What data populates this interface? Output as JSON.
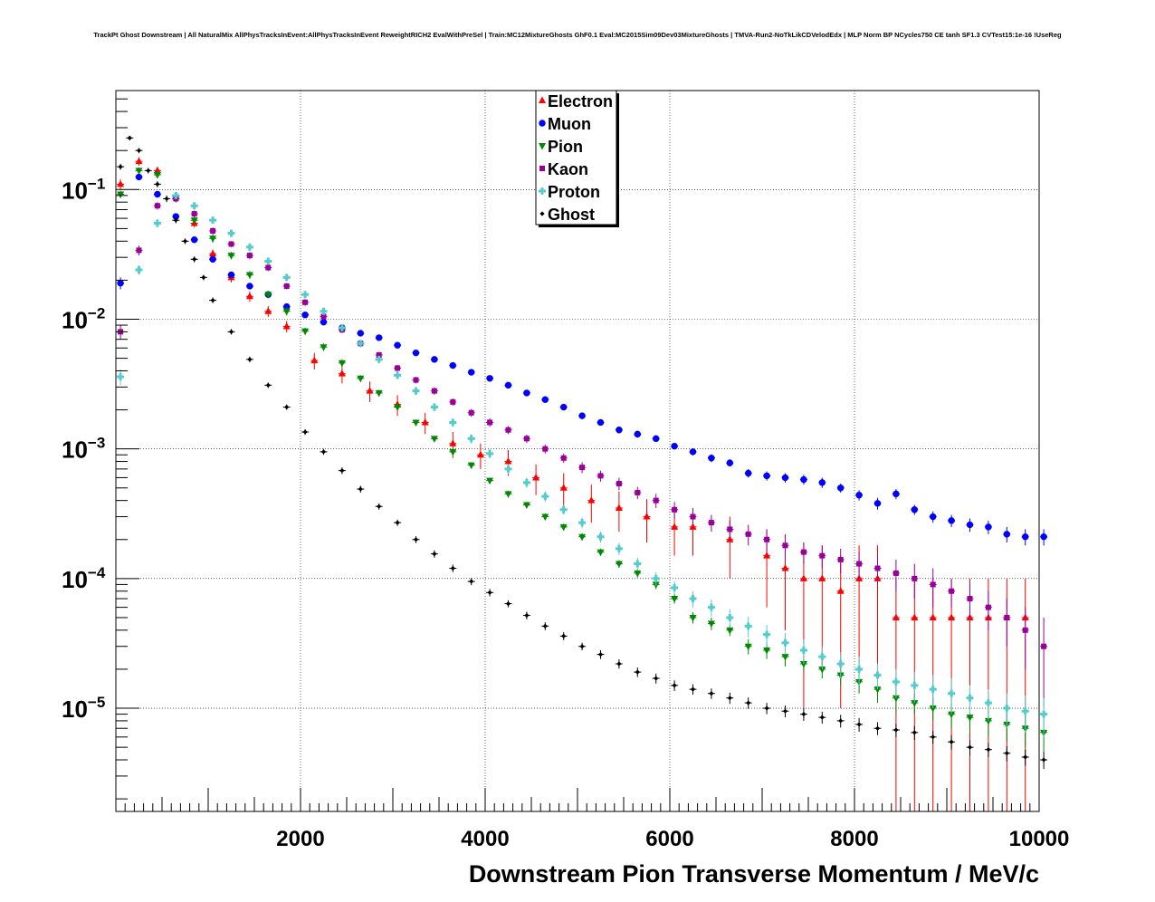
{
  "chart_data": {
    "type": "scatter",
    "title": "TrackPt Ghost Downstream | All NaturalMix AllPhysTracksInEvent:AllPhysTracksInEvent ReweightRICH2 EvalWithPreSel | Train:MC12MixtureGhosts GhF0.1 Eval:MC2015Sim09Dev03MixtureGhosts | TMVA-Run2-NoTkLikCDVelodEdx | MLP Norm BP NCycles750 CE tanh SF1.3 CVTest15:1e-16 !UseReg",
    "xlabel": "Downstream Pion Transverse Momentum / MeV/c",
    "ylabel": "",
    "xlim": [
      0,
      10000
    ],
    "ylim": [
      1.6e-06,
      0.58
    ],
    "yscale": "log",
    "grid": true,
    "legend_position": "top-center",
    "x_ticks": [
      "2000",
      "4000",
      "6000",
      "8000",
      "10000"
    ],
    "y_ticks": [
      {
        "mant": "10",
        "exp": "−1",
        "value": 0.1
      },
      {
        "mant": "10",
        "exp": "−2",
        "value": 0.01
      },
      {
        "mant": "10",
        "exp": "−3",
        "value": 0.001
      },
      {
        "mant": "10",
        "exp": "−4",
        "value": 0.0001
      },
      {
        "mant": "10",
        "exp": "−5",
        "value": 1e-05
      }
    ],
    "series": [
      {
        "name": "Electron",
        "color": "#ff0000",
        "marker": "triangle-up",
        "x": [
          50,
          250,
          450,
          650,
          850,
          1050,
          1250,
          1450,
          1650,
          1850,
          2150,
          2450,
          2750,
          3050,
          3350,
          3650,
          3950,
          4250,
          4550,
          4850,
          5150,
          5450,
          5750,
          6050,
          6250,
          6650,
          7050,
          7250,
          7450,
          7650,
          7850,
          8050,
          8250,
          8450,
          8650,
          8850,
          9050,
          9250,
          9450,
          9650,
          9850
        ],
        "y": [
          0.11,
          0.165,
          0.14,
          0.088,
          0.055,
          0.032,
          0.021,
          0.015,
          0.0115,
          0.0088,
          0.0048,
          0.0038,
          0.0028,
          0.0022,
          0.0016,
          0.0011,
          0.0009,
          0.0008,
          0.0006,
          0.0005,
          0.0004,
          0.00035,
          0.0003,
          0.00025,
          0.00025,
          0.0002,
          0.00015,
          0.00012,
          0.0001,
          0.0001,
          8e-05,
          0.0001,
          0.0001,
          5e-05,
          5e-05,
          5e-05,
          5e-05,
          5e-05,
          5e-05,
          5e-05,
          5e-05
        ],
        "yerr": [
          0.01,
          0.012,
          0.01,
          0.006,
          0.004,
          0.0025,
          0.0018,
          0.0014,
          0.0011,
          0.0009,
          0.0007,
          0.0006,
          0.0005,
          0.0004,
          0.0003,
          0.00025,
          0.0002,
          0.00018,
          0.00016,
          0.00015,
          0.00013,
          0.00012,
          0.00011,
          0.0001,
          0.0001,
          0.0001,
          9e-05,
          8e-05,
          9e-05,
          8e-05,
          7e-05,
          8e-05,
          8e-05,
          5e-05,
          5e-05,
          5e-05,
          5e-05,
          5e-05,
          5e-05,
          5e-05,
          5e-05
        ]
      },
      {
        "name": "Muon",
        "color": "#0000ff",
        "marker": "circle",
        "x": [
          50,
          250,
          450,
          650,
          850,
          1050,
          1250,
          1450,
          1650,
          1850,
          2050,
          2250,
          2450,
          2650,
          2850,
          3050,
          3250,
          3450,
          3650,
          3850,
          4050,
          4250,
          4450,
          4650,
          4850,
          5050,
          5250,
          5450,
          5650,
          5850,
          6050,
          6250,
          6450,
          6650,
          6850,
          7050,
          7250,
          7450,
          7650,
          7850,
          8050,
          8250,
          8450,
          8650,
          8850,
          9050,
          9250,
          9450,
          9650,
          9850,
          10050
        ],
        "y": [
          0.019,
          0.125,
          0.092,
          0.062,
          0.041,
          0.029,
          0.022,
          0.018,
          0.0155,
          0.0125,
          0.0108,
          0.0095,
          0.0086,
          0.0078,
          0.0072,
          0.0063,
          0.0055,
          0.0049,
          0.0044,
          0.0039,
          0.0035,
          0.0031,
          0.0027,
          0.0024,
          0.0021,
          0.0018,
          0.0016,
          0.0014,
          0.0013,
          0.0012,
          0.00105,
          0.00095,
          0.00085,
          0.00078,
          0.00065,
          0.00062,
          0.0006,
          0.00058,
          0.00055,
          0.0005,
          0.00044,
          0.00038,
          0.00045,
          0.00034,
          0.0003,
          0.00028,
          0.00026,
          0.00025,
          0.00022,
          0.00021,
          0.00021
        ],
        "yerr": [
          0.002,
          0.005,
          0.004,
          0.003,
          0.002,
          0.0015,
          0.001,
          0.0008,
          0.0007,
          0.0006,
          0.0005,
          0.0004,
          0.0004,
          0.0003,
          0.0003,
          0.0003,
          0.0002,
          0.0002,
          0.0002,
          0.0002,
          0.00015,
          0.00015,
          0.00012,
          0.00011,
          0.0001,
          0.0001,
          9e-05,
          8e-05,
          8e-05,
          7e-05,
          6e-05,
          6e-05,
          6e-05,
          5e-05,
          5e-05,
          5e-05,
          5e-05,
          5e-05,
          5e-05,
          4e-05,
          4e-05,
          4e-05,
          4e-05,
          3e-05,
          3e-05,
          3e-05,
          3e-05,
          3e-05,
          3e-05,
          3e-05,
          3e-05
        ]
      },
      {
        "name": "Pion",
        "color": "#008800",
        "marker": "triangle-down",
        "x": [
          50,
          250,
          450,
          650,
          850,
          1050,
          1250,
          1450,
          1650,
          1850,
          2050,
          2250,
          2450,
          2650,
          2850,
          3050,
          3250,
          3450,
          3650,
          3850,
          4050,
          4250,
          4450,
          4650,
          4850,
          5050,
          5250,
          5450,
          5650,
          5850,
          6050,
          6250,
          6450,
          6650,
          6850,
          7050,
          7250,
          7450,
          7650,
          7850,
          8050,
          8250,
          8450,
          8650,
          8850,
          9050,
          9250,
          9450,
          9650,
          9850,
          10050
        ],
        "y": [
          0.092,
          0.14,
          0.13,
          0.085,
          0.058,
          0.042,
          0.031,
          0.022,
          0.0155,
          0.0115,
          0.0081,
          0.0061,
          0.0046,
          0.0035,
          0.0027,
          0.0021,
          0.0016,
          0.0012,
          0.00095,
          0.00075,
          0.00057,
          0.00045,
          0.00037,
          0.0003,
          0.00025,
          0.00021,
          0.00016,
          0.00013,
          0.00011,
          9e-05,
          7e-05,
          5e-05,
          4.5e-05,
          4e-05,
          3e-05,
          2.8e-05,
          2.5e-05,
          2.2e-05,
          2e-05,
          1.8e-05,
          1.6e-05,
          1.4e-05,
          1.2e-05,
          1.1e-05,
          1e-05,
          9e-06,
          8.5e-06,
          8e-06,
          7.5e-06,
          7e-06,
          6.5e-06
        ],
        "yerr": [
          0.006,
          0.008,
          0.007,
          0.005,
          0.004,
          0.003,
          0.002,
          0.0015,
          0.001,
          0.0008,
          0.0005,
          0.0004,
          0.0003,
          0.0002,
          0.00015,
          0.0001,
          8e-05,
          6e-05,
          5e-05,
          4e-05,
          3e-05,
          2.5e-05,
          2e-05,
          1.8e-05,
          1.5e-05,
          1.3e-05,
          1e-05,
          9e-06,
          8e-06,
          7e-06,
          6e-06,
          5e-06,
          5e-06,
          4e-06,
          4e-06,
          4e-06,
          4e-06,
          3e-06,
          3e-06,
          3e-06,
          3e-06,
          3e-06,
          3e-06,
          2e-06,
          2e-06,
          2e-06,
          2e-06,
          2e-06,
          2e-06,
          2e-06,
          2e-06
        ]
      },
      {
        "name": "Kaon",
        "color": "#990099",
        "marker": "square",
        "x": [
          50,
          250,
          450,
          650,
          850,
          1050,
          1250,
          1450,
          1650,
          1850,
          2050,
          2250,
          2450,
          2650,
          2850,
          3050,
          3250,
          3450,
          3650,
          3850,
          4050,
          4250,
          4450,
          4650,
          4850,
          5050,
          5250,
          5450,
          5650,
          5850,
          6050,
          6250,
          6450,
          6650,
          6850,
          7050,
          7250,
          7450,
          7650,
          7850,
          8050,
          8250,
          8450,
          8650,
          8850,
          9050,
          9250,
          9450,
          9650,
          9850,
          10050
        ],
        "y": [
          0.008,
          0.034,
          0.075,
          0.085,
          0.065,
          0.048,
          0.038,
          0.031,
          0.025,
          0.018,
          0.0135,
          0.0105,
          0.0083,
          0.0065,
          0.0053,
          0.0042,
          0.0034,
          0.0028,
          0.0023,
          0.0019,
          0.0016,
          0.0014,
          0.0012,
          0.001,
          0.00085,
          0.00072,
          0.00062,
          0.00054,
          0.00046,
          0.0004,
          0.00034,
          0.0003,
          0.00027,
          0.00024,
          0.00022,
          0.0002,
          0.00018,
          0.00016,
          0.00015,
          0.00014,
          0.00013,
          0.00012,
          0.00011,
          0.0001,
          9e-05,
          8e-05,
          7e-05,
          6e-05,
          5e-05,
          4e-05,
          3e-05
        ],
        "yerr": [
          0.001,
          0.003,
          0.005,
          0.005,
          0.004,
          0.003,
          0.002,
          0.002,
          0.0015,
          0.001,
          0.0008,
          0.0006,
          0.0005,
          0.0004,
          0.0003,
          0.00025,
          0.0002,
          0.00018,
          0.00015,
          0.00013,
          0.00012,
          0.0001,
          9e-05,
          8e-05,
          7e-05,
          7e-05,
          6e-05,
          6e-05,
          5e-05,
          5e-05,
          5e-05,
          4e-05,
          4e-05,
          4e-05,
          4e-05,
          4e-05,
          4e-05,
          3e-05,
          3e-05,
          3e-05,
          3e-05,
          3e-05,
          3e-05,
          3e-05,
          3e-05,
          2e-05,
          2e-05,
          2e-05,
          2e-05,
          2e-05,
          2e-05
        ]
      },
      {
        "name": "Proton",
        "color": "#55cccc",
        "marker": "cross",
        "x": [
          50,
          250,
          450,
          650,
          850,
          1050,
          1250,
          1450,
          1650,
          1850,
          2050,
          2250,
          2450,
          2650,
          2850,
          3050,
          3250,
          3450,
          3650,
          3850,
          4050,
          4250,
          4450,
          4650,
          4850,
          5050,
          5250,
          5450,
          5650,
          5850,
          6050,
          6250,
          6450,
          6650,
          6850,
          7050,
          7250,
          7450,
          7650,
          7850,
          8050,
          8250,
          8450,
          8650,
          8850,
          9050,
          9250,
          9450,
          9650,
          9850,
          10050
        ],
        "y": [
          0.0036,
          0.024,
          0.055,
          0.09,
          0.075,
          0.058,
          0.046,
          0.036,
          0.028,
          0.021,
          0.0155,
          0.0115,
          0.0086,
          0.0065,
          0.0049,
          0.0037,
          0.0028,
          0.0021,
          0.0016,
          0.0012,
          0.00092,
          0.0007,
          0.00055,
          0.00043,
          0.00034,
          0.00027,
          0.00021,
          0.00017,
          0.00013,
          0.0001,
          8.5e-05,
          7e-05,
          6e-05,
          5e-05,
          4.3e-05,
          3.7e-05,
          3.2e-05,
          2.8e-05,
          2.5e-05,
          2.2e-05,
          2e-05,
          1.8e-05,
          1.6e-05,
          1.5e-05,
          1.4e-05,
          1.3e-05,
          1.2e-05,
          1.1e-05,
          1e-05,
          9.5e-06,
          9e-06
        ],
        "yerr": [
          0.0005,
          0.002,
          0.004,
          0.005,
          0.004,
          0.003,
          0.0025,
          0.002,
          0.0015,
          0.001,
          0.0008,
          0.0006,
          0.0005,
          0.0004,
          0.0003,
          0.00025,
          0.0002,
          0.00015,
          0.00012,
          0.0001,
          8e-05,
          6e-05,
          5e-05,
          4e-05,
          3e-05,
          2.5e-05,
          2e-05,
          1.8e-05,
          1.5e-05,
          1.2e-05,
          1e-05,
          1e-05,
          9e-06,
          8e-06,
          8e-06,
          7e-06,
          6e-06,
          6e-06,
          5e-06,
          5e-06,
          5e-06,
          4e-06,
          4e-06,
          4e-06,
          4e-06,
          4e-06,
          3e-06,
          3e-06,
          3e-06,
          3e-06,
          3e-06
        ]
      },
      {
        "name": "Ghost",
        "color": "#000000",
        "marker": "cross-small",
        "x": [
          50,
          150,
          250,
          350,
          450,
          550,
          650,
          750,
          850,
          950,
          1050,
          1250,
          1450,
          1650,
          1850,
          2050,
          2250,
          2450,
          2650,
          2850,
          3050,
          3250,
          3450,
          3650,
          3850,
          4050,
          4250,
          4450,
          4650,
          4850,
          5050,
          5250,
          5450,
          5650,
          5850,
          6050,
          6250,
          6450,
          6650,
          6850,
          7050,
          7250,
          7450,
          7650,
          7850,
          8050,
          8250,
          8450,
          8650,
          8850,
          9050,
          9250,
          9450,
          9650,
          9850,
          10050
        ],
        "y": [
          0.15,
          0.25,
          0.2,
          0.14,
          0.11,
          0.085,
          0.058,
          0.04,
          0.029,
          0.021,
          0.014,
          0.008,
          0.0049,
          0.0031,
          0.0021,
          0.00135,
          0.00095,
          0.00068,
          0.00049,
          0.00036,
          0.00027,
          0.0002,
          0.000155,
          0.00012,
          9.5e-05,
          7.8e-05,
          6.4e-05,
          5.2e-05,
          4.3e-05,
          3.6e-05,
          3e-05,
          2.6e-05,
          2.2e-05,
          1.9e-05,
          1.7e-05,
          1.5e-05,
          1.4e-05,
          1.3e-05,
          1.2e-05,
          1.1e-05,
          1e-05,
          9.5e-06,
          9e-06,
          8.5e-06,
          8e-06,
          7.5e-06,
          7e-06,
          6.8e-06,
          6.5e-06,
          6e-06,
          5.5e-06,
          5e-06,
          4.8e-06,
          4.5e-06,
          4.2e-06,
          4e-06
        ],
        "yerr": [
          0.008,
          0.01,
          0.009,
          0.007,
          0.006,
          0.005,
          0.003,
          0.002,
          0.0015,
          0.001,
          0.0007,
          0.0004,
          0.00025,
          0.00015,
          0.0001,
          7e-05,
          5e-05,
          4e-05,
          3e-05,
          2e-05,
          1.5e-05,
          1.2e-05,
          1e-05,
          8e-06,
          6e-06,
          5e-06,
          4e-06,
          3.5e-06,
          3e-06,
          2.5e-06,
          2e-06,
          2e-06,
          1.8e-06,
          1.6e-06,
          1.5e-06,
          1.4e-06,
          1.3e-06,
          1.2e-06,
          1.2e-06,
          1.1e-06,
          1e-06,
          1e-06,
          1e-06,
          9e-07,
          9e-07,
          9e-07,
          8e-07,
          8e-07,
          8e-07,
          7e-07,
          7e-07,
          7e-07,
          6e-07,
          6e-07,
          6e-07,
          6e-07
        ]
      }
    ]
  }
}
